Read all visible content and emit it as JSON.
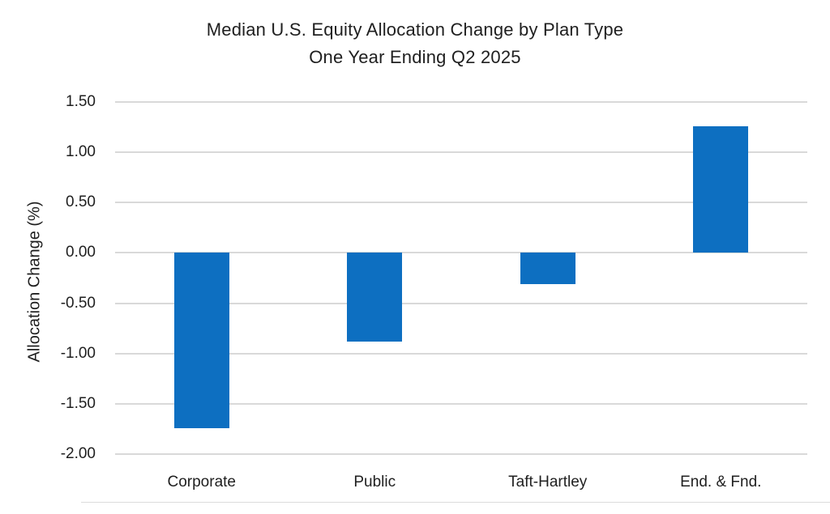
{
  "chart_data": {
    "type": "bar",
    "title": "Median U.S. Equity Allocation Change by Plan Type",
    "subtitle": "One Year Ending Q2 2025",
    "categories": [
      "Corporate",
      "Public",
      "Taft-Hartley",
      "End. & Fnd."
    ],
    "values": [
      -1.74,
      -0.88,
      -0.31,
      1.26
    ],
    "xlabel": "",
    "ylabel": "Allocation Change (%)",
    "ylim": [
      -2.0,
      1.5
    ],
    "ytick_step": 0.5,
    "ytick_labels": [
      "1.50",
      "1.00",
      "0.50",
      "0.00",
      "-0.50",
      "-1.00",
      "-1.50",
      "-2.00"
    ],
    "grid": "horizontal-only",
    "legend": "none",
    "bar_color": "#0d6fc1",
    "gridline_color": "#d9d9d9",
    "text_color": "#1f1f1f"
  }
}
